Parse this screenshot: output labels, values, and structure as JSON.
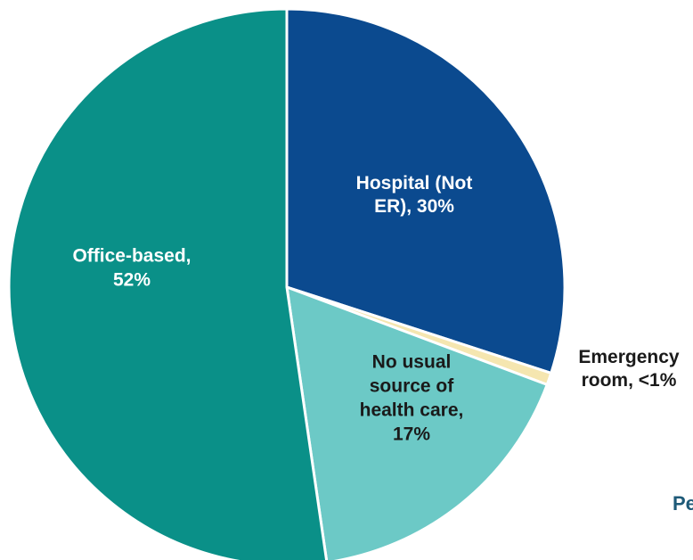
{
  "chart_data": {
    "type": "pie",
    "slices": [
      {
        "label": "Hospital (Not ER), 30%",
        "lines": [
          "Hospital (Not",
          "ER), 30%"
        ],
        "value": 30,
        "color": "#0b4a8f"
      },
      {
        "label": "Emergency room, <1%",
        "lines": [
          "Emergency",
          "room, <1%"
        ],
        "value": 0.7,
        "color": "#f5e6b0"
      },
      {
        "label": "No usual source of health care, 17%",
        "lines": [
          "No usual",
          "source of",
          "health care,",
          "17%"
        ],
        "value": 17,
        "color": "#6cc9c6"
      },
      {
        "label": "Office-based, 52%",
        "lines": [
          "Office-based,",
          "52%"
        ],
        "value": 52.3,
        "color": "#0a9088"
      }
    ]
  },
  "cropped_text": "Pe"
}
